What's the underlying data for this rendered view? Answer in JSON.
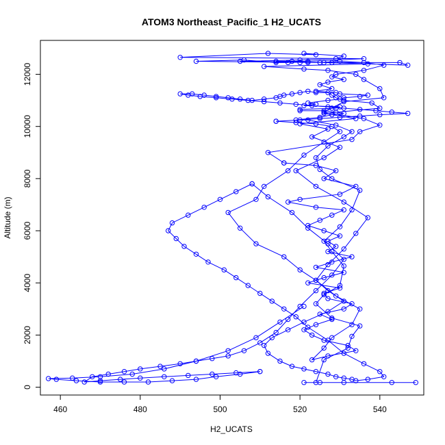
{
  "chart_data": {
    "type": "line",
    "title": "ATOM3 Northeast_Pacific_1 H2_UCATS",
    "xlabel": "H2_UCATS",
    "ylabel": "Altitude (m)",
    "xlim": [
      455,
      551
    ],
    "ylim": [
      -300,
      13300
    ],
    "xticks": [
      460,
      480,
      500,
      520,
      540
    ],
    "yticks": [
      0,
      2000,
      4000,
      6000,
      8000,
      10000,
      12000
    ],
    "grid": false,
    "legend": "none",
    "series_color": "#0000ff",
    "markers": "open-circle",
    "series": [
      {
        "x": [
          549,
          543,
          531,
          525,
          521,
          524,
          526,
          532,
          533,
          535,
          528,
          524,
          526,
          530,
          531,
          528,
          526,
          530,
          533,
          535,
          528,
          525,
          524,
          527,
          531,
          533,
          529,
          522,
          519,
          525,
          528,
          531,
          529,
          526,
          520,
          520,
          529,
          530,
          521,
          524,
          522,
          527,
          530,
          531,
          535,
          537,
          530,
          529,
          524,
          528,
          525,
          527,
          531,
          528,
          529,
          536,
          541,
          536,
          530,
          525,
          522,
          520,
          518,
          517,
          514,
          506,
          494,
          526,
          545,
          547,
          528,
          505,
          520,
          529,
          531,
          521,
          524,
          512,
          490,
          536,
          522,
          514,
          537,
          511,
          521,
          527,
          534,
          536,
          540,
          541,
          531,
          528,
          526,
          536,
          540,
          535,
          533,
          512,
          516
        ],
        "y": [
          180,
          180,
          180,
          180,
          180,
          180,
          1050,
          1500,
          1950,
          2350,
          2650,
          3200,
          3550,
          3900,
          4650,
          5200,
          5600,
          6150,
          6800,
          7550,
          8000,
          8350,
          8800,
          9250,
          9600,
          9800,
          10050,
          10250,
          10250,
          10350,
          10450,
          10500,
          10550,
          10600,
          10600,
          10650,
          10700,
          10750,
          10800,
          10850,
          10900,
          11000,
          11050,
          11100,
          11150,
          11200,
          11250,
          11300,
          11350,
          11450,
          11600,
          11700,
          11800,
          11900,
          12000,
          12150,
          12350,
          12450,
          12500,
          12450,
          12450,
          12450,
          12500,
          12450,
          12450,
          12550,
          12500,
          12450,
          12450,
          12350,
          12450,
          12500,
          12550,
          12600,
          12700,
          12800,
          12750,
          12800,
          12650,
          12600,
          12500,
          12500,
          12400,
          12300,
          12200,
          12150,
          12000,
          11800,
          11450,
          11100,
          10950,
          10700,
          10550,
          10300,
          10050,
          9800,
          9500,
          9000,
          8600
        ]
      },
      {
        "x": [
          516,
          524,
          529,
          526,
          534,
          530,
          520,
          517,
          524,
          531,
          528,
          525,
          522,
          526,
          530,
          527,
          529,
          527,
          533,
          528,
          524,
          531,
          526,
          522,
          530,
          526,
          527,
          533,
          531,
          525,
          528,
          524,
          521,
          523,
          526,
          532,
          534,
          527,
          523,
          526,
          528,
          533,
          535,
          529,
          524,
          527,
          531,
          534,
          537,
          531,
          524,
          519,
          526,
          530,
          523,
          527,
          520,
          534,
          526,
          540,
          538,
          531,
          529,
          528,
          527,
          524,
          522,
          520,
          518,
          516,
          515,
          514,
          511,
          508,
          505,
          502,
          499,
          496,
          493,
          490,
          492,
          495,
          499,
          503,
          507,
          511,
          515,
          519,
          523,
          527,
          531,
          535,
          539,
          543,
          547,
          540,
          535,
          530,
          525,
          520,
          514
        ],
        "y": [
          8600,
          8500,
          8300,
          8000,
          7700,
          7400,
          7200,
          7100,
          6900,
          6800,
          6600,
          6400,
          6200,
          6000,
          5800,
          5600,
          5400,
          5200,
          5000,
          4800,
          4600,
          4400,
          4200,
          4000,
          3800,
          3600,
          3400,
          3200,
          3000,
          2800,
          2600,
          2400,
          2200,
          2000,
          1800,
          1600,
          1400,
          1200,
          1050,
          1500,
          1900,
          2400,
          3000,
          3500,
          4100,
          4700,
          5300,
          5900,
          6500,
          7100,
          7700,
          8300,
          8800,
          9200,
          9600,
          9900,
          10100,
          10300,
          10500,
          10700,
          10900,
          11000,
          11100,
          11200,
          11300,
          11300,
          11350,
          11300,
          11250,
          11200,
          11150,
          11100,
          11050,
          11000,
          11050,
          11100,
          11150,
          11200,
          11250,
          11250,
          11200,
          11150,
          11100,
          11050,
          11000,
          10950,
          10900,
          10850,
          10800,
          10750,
          10700,
          10650,
          10600,
          10550,
          10500,
          10450,
          10400,
          10350,
          10300,
          10250,
          10200
        ]
      },
      {
        "x": [
          514,
          519,
          524,
          528,
          530,
          526,
          521,
          517,
          511,
          509,
          502,
          505,
          509,
          516,
          520,
          524,
          527,
          531,
          527,
          521,
          517,
          513,
          511,
          512,
          515,
          518,
          521,
          524,
          527,
          529,
          531,
          533,
          534,
          537,
          541,
          540,
          536,
          531,
          527,
          522,
          519,
          516,
          513,
          510,
          507,
          504,
          501,
          497,
          494,
          491,
          489,
          487,
          488,
          492,
          496,
          500,
          504,
          508
        ],
        "y": [
          10200,
          10150,
          10100,
          10000,
          9800,
          9400,
          8900,
          8300,
          7700,
          7200,
          6700,
          6100,
          5500,
          5000,
          4500,
          4100,
          3700,
          3300,
          2900,
          2500,
          2200,
          1900,
          1600,
          1300,
          1000,
          800,
          700,
          600,
          500,
          400,
          350,
          300,
          250,
          300,
          400,
          600,
          900,
          1300,
          1800,
          2300,
          2700,
          3000,
          3300,
          3600,
          3900,
          4200,
          4500,
          4800,
          5100,
          5400,
          5700,
          6000,
          6300,
          6600,
          6900,
          7200,
          7500,
          7800
        ]
      },
      {
        "x": [
          508,
          512,
          518,
          522,
          527,
          531,
          528,
          524,
          520,
          517,
          514,
          510,
          506,
          502,
          498,
          494,
          490,
          485,
          480,
          476,
          472,
          468,
          466,
          470,
          475,
          480,
          486,
          492,
          498,
          504,
          510
        ],
        "y": [
          7800,
          7300,
          6700,
          6100,
          5500,
          4900,
          4300,
          3700,
          3100,
          2600,
          2100,
          1700,
          1400,
          1200,
          1100,
          1000,
          900,
          800,
          700,
          600,
          500,
          400,
          200,
          250,
          300,
          350,
          400,
          450,
          500,
          550,
          600
        ]
      },
      {
        "x": [
          510,
          505,
          499,
          494,
          488,
          482,
          476,
          470,
          464,
          459,
          457,
          463,
          470,
          478,
          486,
          494,
          502,
          509,
          515,
          521
        ],
        "y": [
          600,
          500,
          400,
          300,
          250,
          200,
          200,
          200,
          250,
          300,
          330,
          350,
          400,
          500,
          700,
          1000,
          1400,
          1900,
          2500,
          3100
        ]
      }
    ]
  }
}
